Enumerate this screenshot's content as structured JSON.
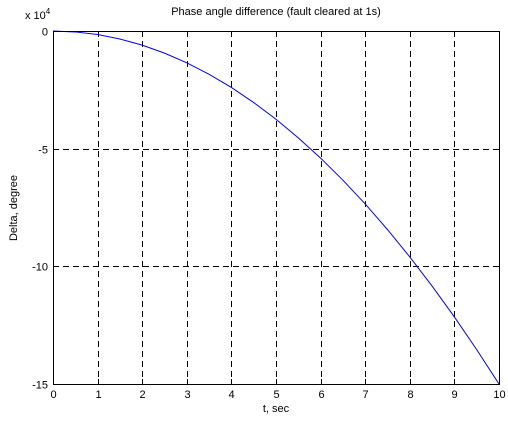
{
  "chart_data": {
    "type": "line",
    "title": "Phase angle difference (fault cleared at 1s)",
    "xlabel": "t, sec",
    "ylabel": "Delta, degree",
    "y_exponent_base": "x 10",
    "y_exponent_power": "4",
    "xlim": [
      0,
      10
    ],
    "ylim": [
      -150000,
      0
    ],
    "xticks": [
      0,
      1,
      2,
      3,
      4,
      5,
      6,
      7,
      8,
      9,
      10
    ],
    "xtick_labels": [
      "0",
      "1",
      "2",
      "3",
      "4",
      "5",
      "6",
      "7",
      "8",
      "9",
      "10"
    ],
    "yticks": [
      0,
      -50000,
      -100000,
      -150000
    ],
    "ytick_labels": [
      "0",
      "-5",
      "-10",
      "-15"
    ],
    "grid": true,
    "grid_style": "dashed",
    "series": [
      {
        "color": "#0000ff",
        "x": [
          0,
          0.5,
          1,
          1.5,
          2,
          2.5,
          3,
          3.5,
          4,
          4.5,
          5,
          5.5,
          6,
          6.5,
          7,
          7.5,
          8,
          8.5,
          9,
          9.5,
          10
        ],
        "y": [
          0,
          -400,
          -1500,
          -3400,
          -6000,
          -9400,
          -13500,
          -18400,
          -24000,
          -30400,
          -37500,
          -45400,
          -54000,
          -63400,
          -73500,
          -84400,
          -96000,
          -108400,
          -121500,
          -135400,
          -150000
        ]
      }
    ]
  }
}
